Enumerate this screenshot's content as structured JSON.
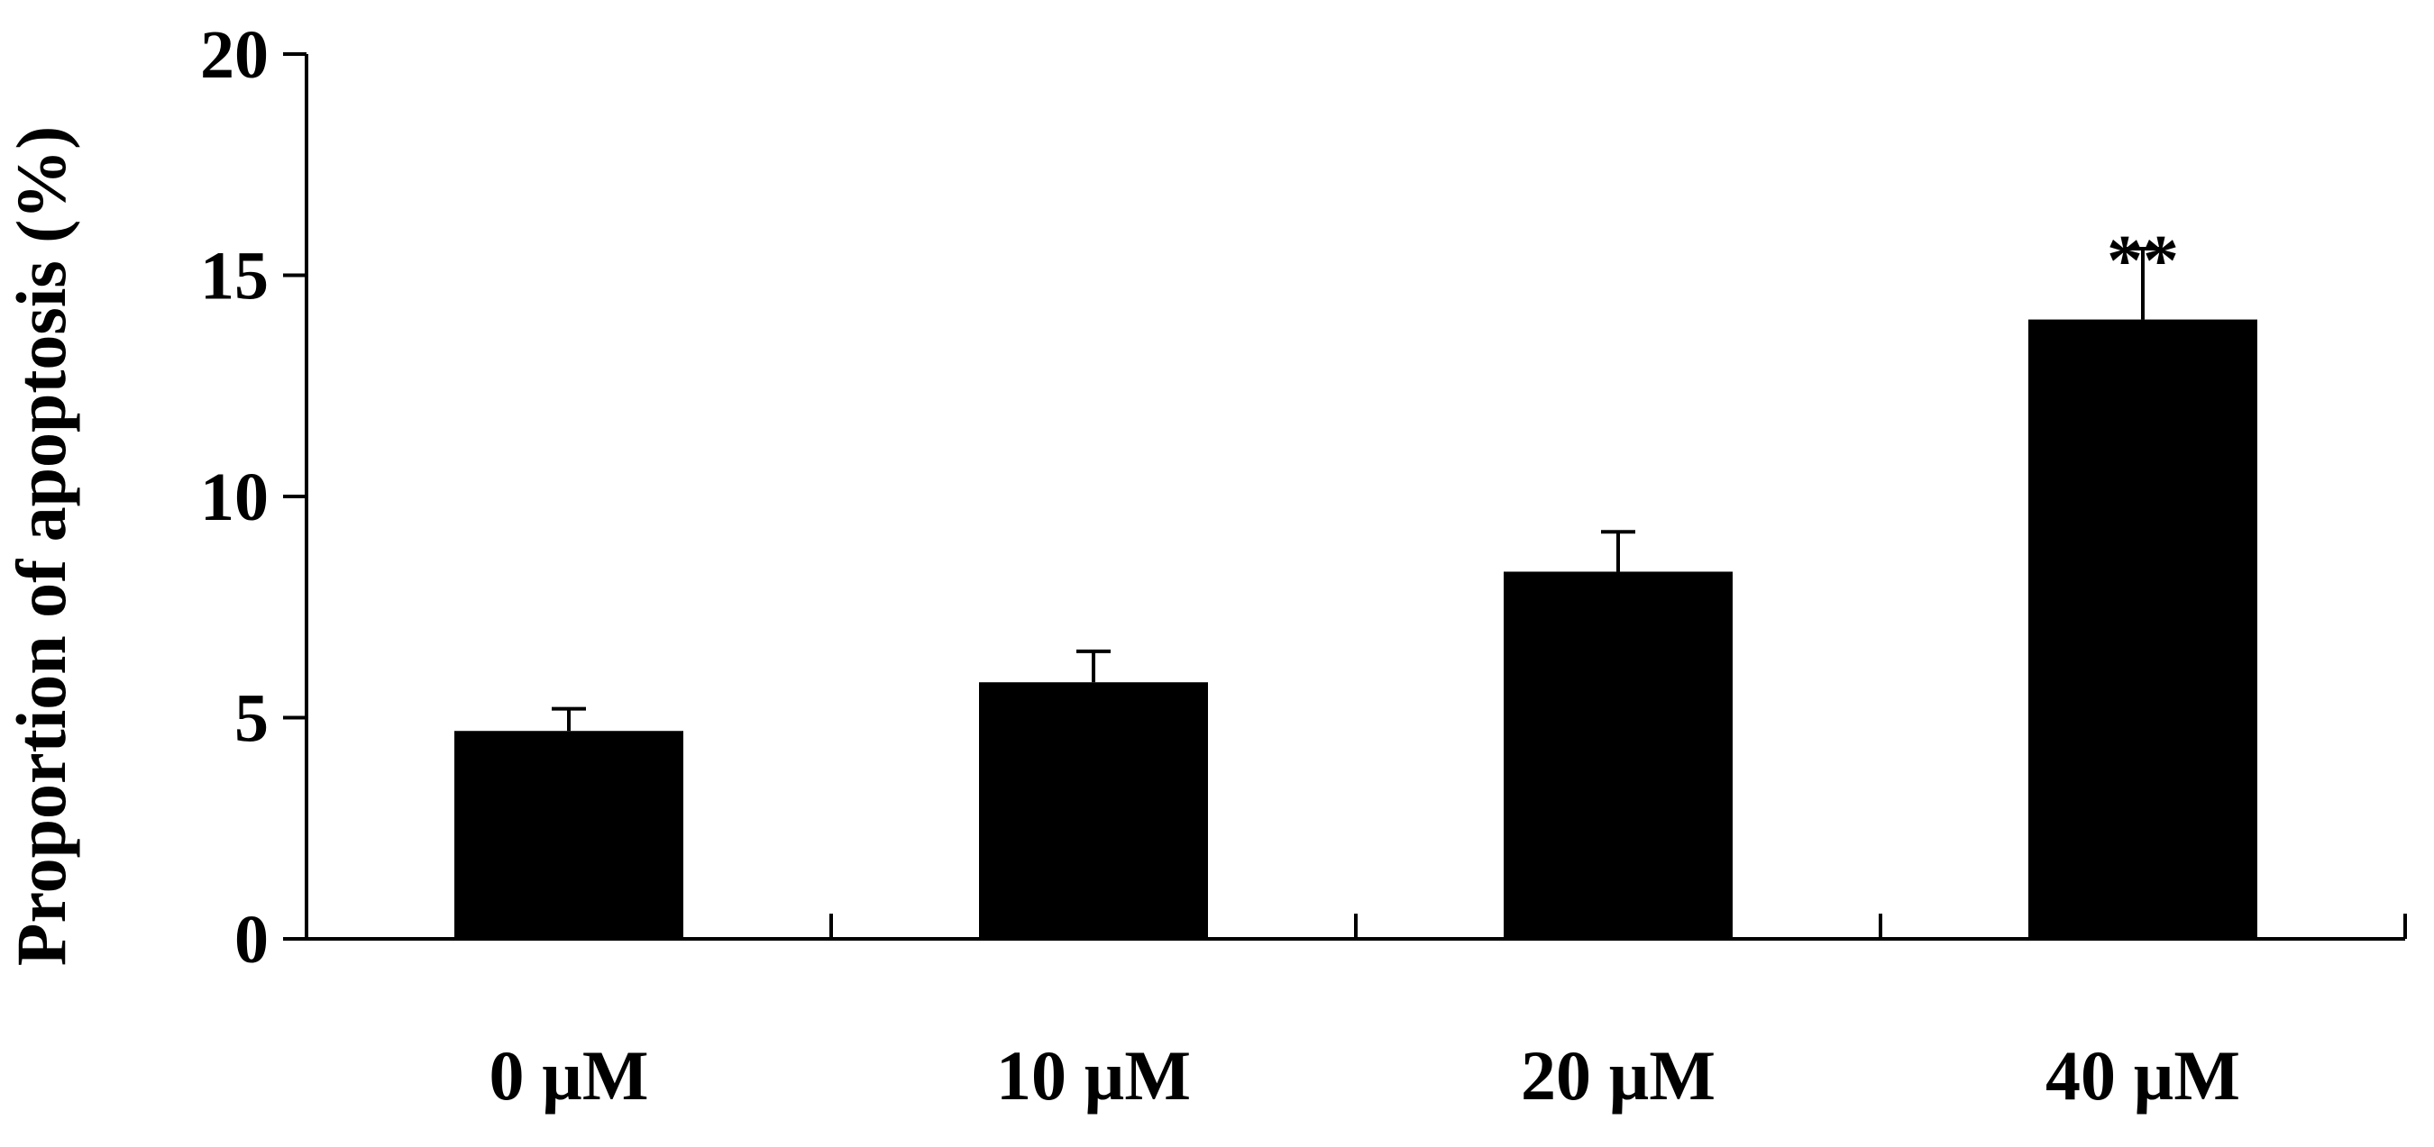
{
  "chart_data": {
    "type": "bar",
    "title": "",
    "xlabel": "",
    "ylabel": "Proportion of apoptosis (%)",
    "categories": [
      "0 µM",
      "10 µM",
      "20 µM",
      "40 µM"
    ],
    "values": [
      4.7,
      5.8,
      8.3,
      14.0
    ],
    "error_upper": [
      0.5,
      0.7,
      0.9,
      1.6
    ],
    "annotations": [
      "",
      "",
      "",
      "**"
    ],
    "ylim": [
      0,
      20
    ],
    "yticks": [
      0,
      5,
      10,
      15,
      20
    ],
    "grid": false,
    "legend": "none",
    "colors": {
      "bar": "#000000",
      "axis": "#000000",
      "background": "#ffffff"
    }
  }
}
